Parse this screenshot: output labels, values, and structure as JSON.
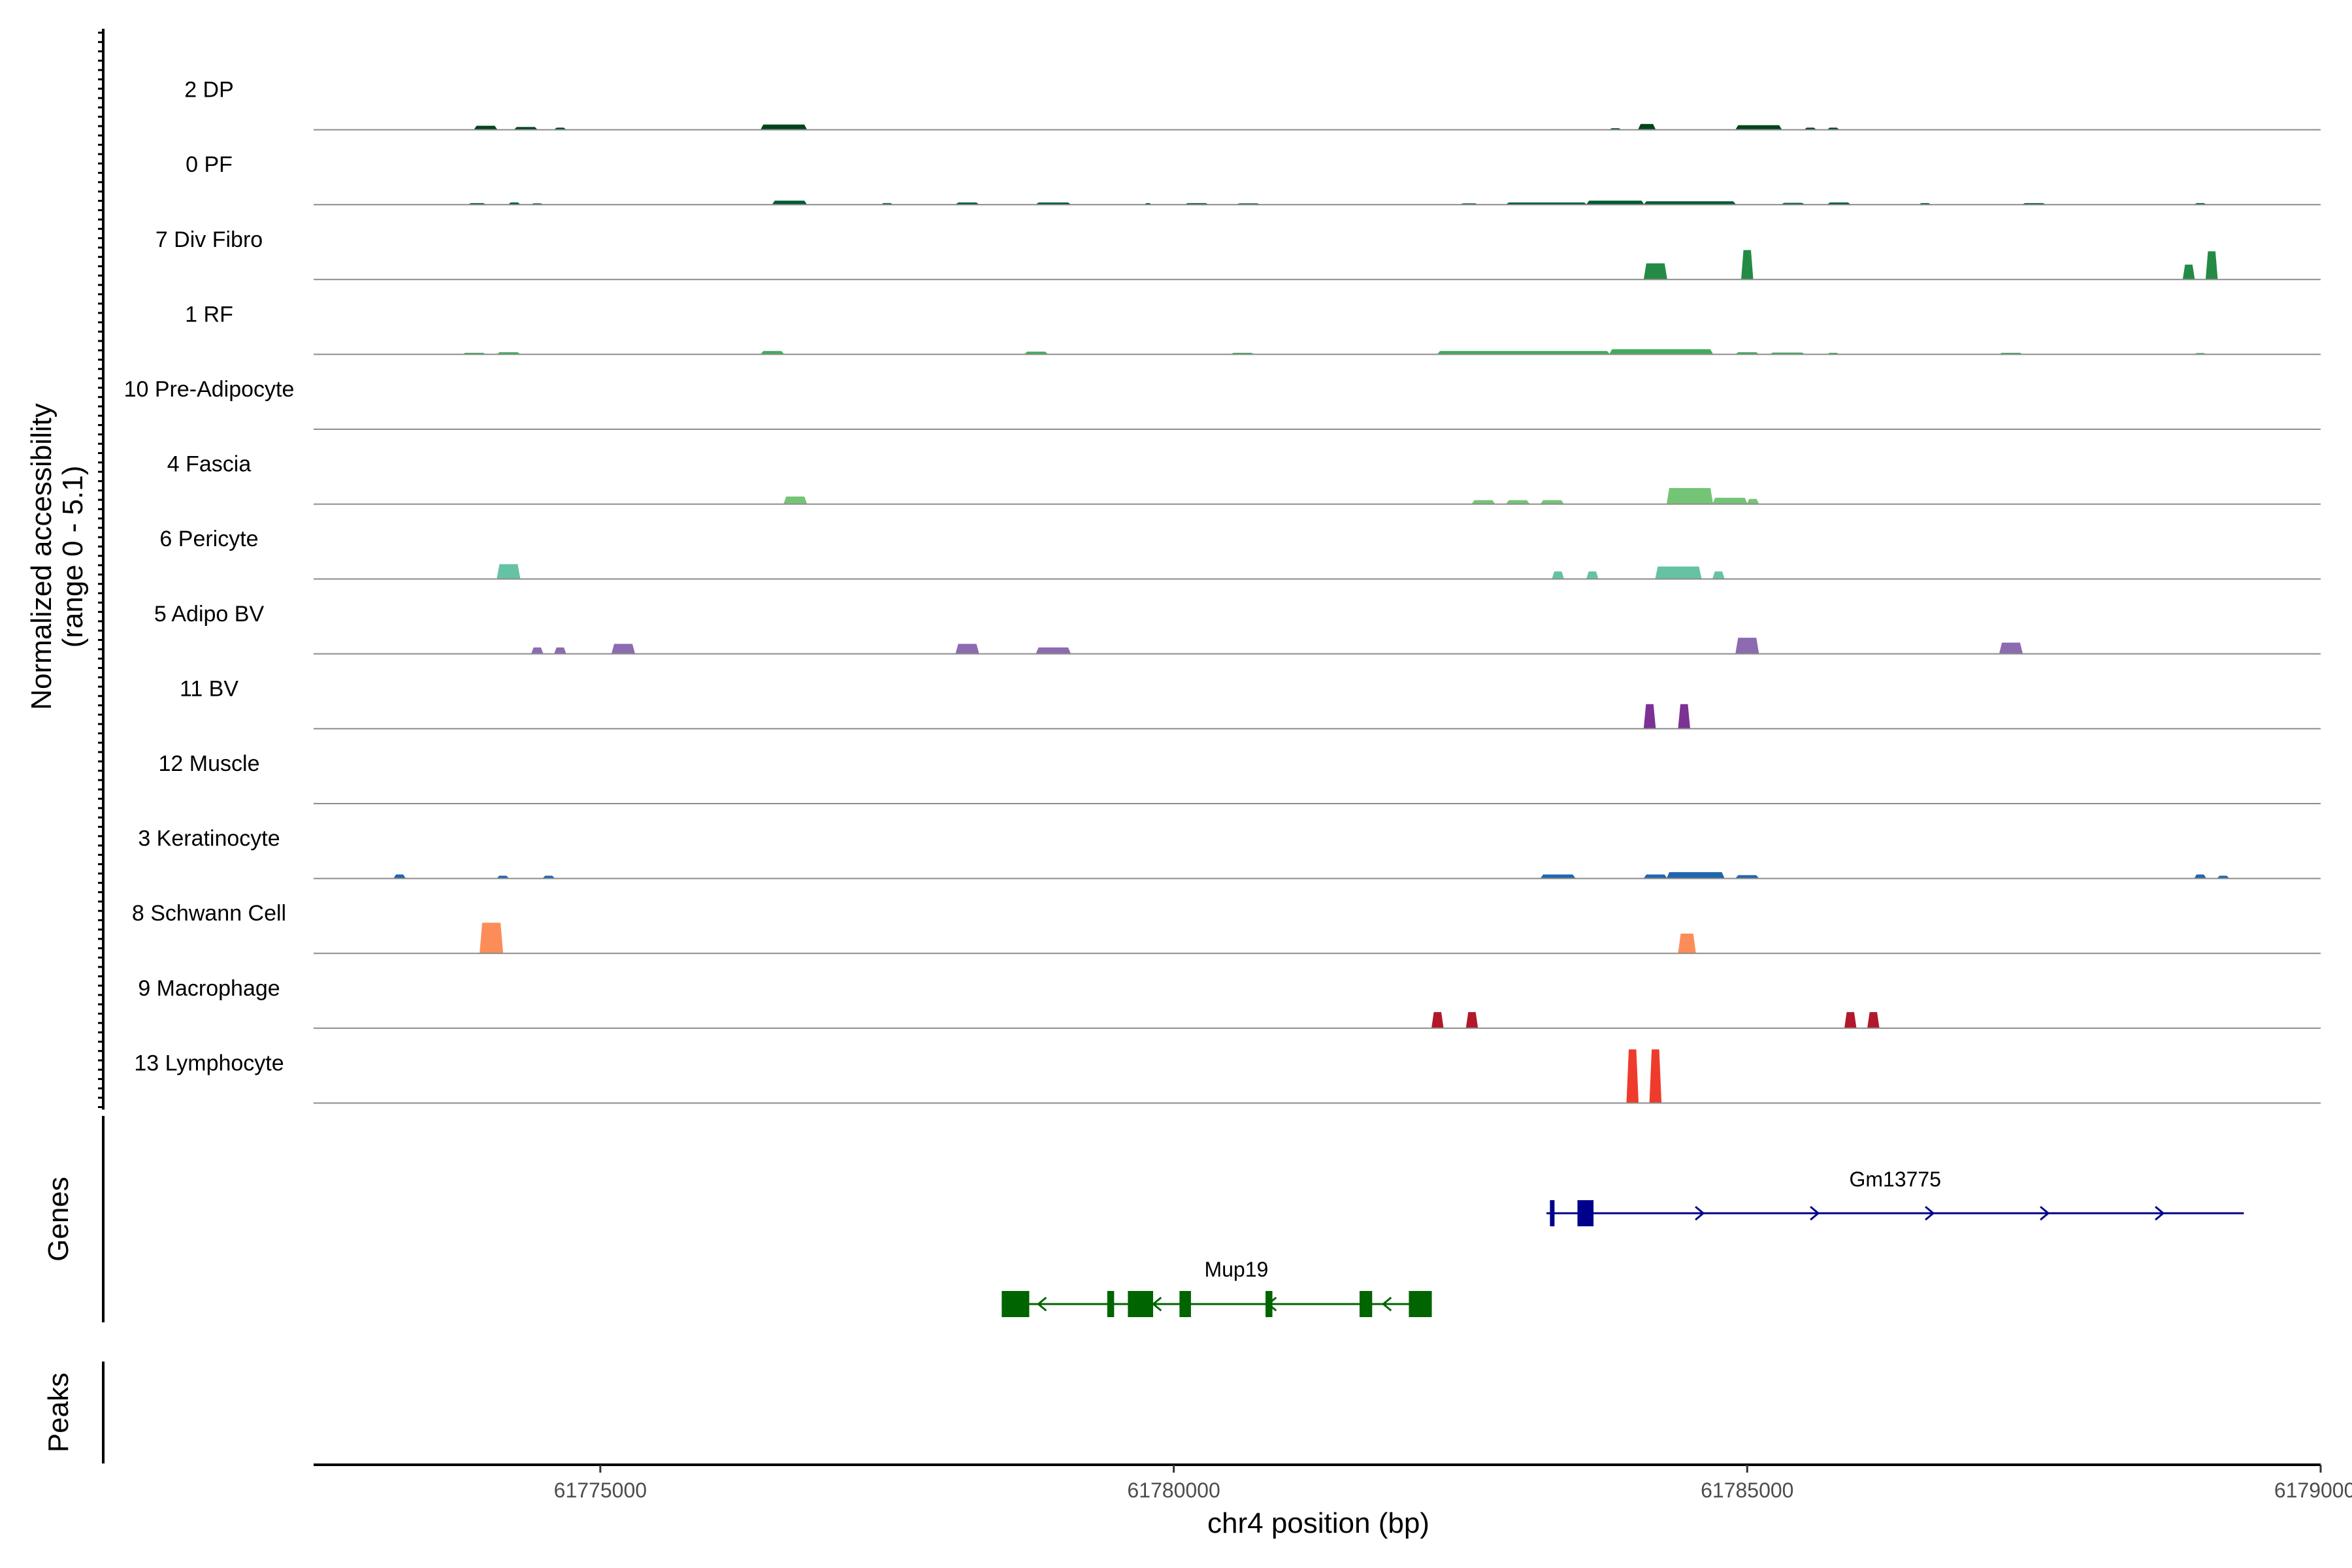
{
  "chart_data": {
    "type": "area",
    "region": "chr4",
    "xlabel": "chr4 position (bp)",
    "ylabel_line1": "Normalized accessibility",
    "ylabel_line2": "(range 0 - 5.1)",
    "genes_label": "Genes",
    "peaks_label": "Peaks",
    "xlim": [
      61772500,
      61790000
    ],
    "ylim": [
      0,
      5.1
    ],
    "x_ticks": [
      61775000,
      61780000,
      61785000,
      61790000
    ],
    "x_tick_labels": [
      "61775000",
      "61780000",
      "61785000",
      "61790000"
    ],
    "tracks": [
      {
        "name": "2 DP",
        "color": "#00441b",
        "values": [
          [
            61773900,
            61774100,
            0.3
          ],
          [
            61774250,
            61774450,
            0.2
          ],
          [
            61774600,
            61774700,
            0.15
          ],
          [
            61776400,
            61776800,
            0.4
          ],
          [
            61783800,
            61783900,
            0.1
          ],
          [
            61784050,
            61784200,
            0.45
          ],
          [
            61784900,
            61785300,
            0.35
          ],
          [
            61785500,
            61785600,
            0.15
          ],
          [
            61785700,
            61785800,
            0.15
          ]
        ]
      },
      {
        "name": "0 PF",
        "color": "#005a32",
        "values": [
          [
            61773850,
            61774000,
            0.1
          ],
          [
            61774200,
            61774300,
            0.15
          ],
          [
            61774400,
            61774500,
            0.08
          ],
          [
            61776500,
            61776800,
            0.3
          ],
          [
            61777450,
            61777550,
            0.1
          ],
          [
            61778100,
            61778300,
            0.15
          ],
          [
            61778800,
            61779100,
            0.15
          ],
          [
            61779750,
            61779800,
            0.1
          ],
          [
            61780100,
            61780300,
            0.1
          ],
          [
            61780550,
            61780750,
            0.08
          ],
          [
            61782500,
            61782650,
            0.08
          ],
          [
            61782900,
            61783600,
            0.15
          ],
          [
            61783600,
            61784100,
            0.3
          ],
          [
            61784100,
            61784900,
            0.25
          ],
          [
            61785300,
            61785500,
            0.12
          ],
          [
            61785700,
            61785900,
            0.15
          ],
          [
            61786500,
            61786600,
            0.1
          ],
          [
            61787400,
            61787600,
            0.1
          ],
          [
            61788900,
            61789000,
            0.1
          ]
        ]
      },
      {
        "name": "7 Div Fibro",
        "color": "#238b45",
        "values": [
          [
            61784100,
            61784300,
            1.3
          ],
          [
            61784950,
            61785050,
            2.4
          ],
          [
            61788800,
            61788900,
            1.2
          ],
          [
            61789000,
            61789100,
            2.3
          ]
        ]
      },
      {
        "name": "1 RF",
        "color": "#41ab5d",
        "values": [
          [
            61773800,
            61774000,
            0.1
          ],
          [
            61774100,
            61774300,
            0.15
          ],
          [
            61776400,
            61776600,
            0.25
          ],
          [
            61778700,
            61778900,
            0.2
          ],
          [
            61780500,
            61780700,
            0.1
          ],
          [
            61782300,
            61783800,
            0.25
          ],
          [
            61783800,
            61784700,
            0.4
          ],
          [
            61784900,
            61785100,
            0.15
          ],
          [
            61785200,
            61785500,
            0.12
          ],
          [
            61785700,
            61785800,
            0.1
          ],
          [
            61787200,
            61787400,
            0.1
          ],
          [
            61788900,
            61789000,
            0.08
          ]
        ]
      },
      {
        "name": "10 Pre-Adipocyte",
        "color": "#74c476",
        "values": []
      },
      {
        "name": "4 Fascia",
        "color": "#74c476",
        "values": [
          [
            61776600,
            61776800,
            0.6
          ],
          [
            61782600,
            61782800,
            0.3
          ],
          [
            61782900,
            61783100,
            0.3
          ],
          [
            61783200,
            61783400,
            0.3
          ],
          [
            61784300,
            61784700,
            1.3
          ],
          [
            61784700,
            61785000,
            0.5
          ],
          [
            61785000,
            61785100,
            0.4
          ]
        ]
      },
      {
        "name": "6 Pericyte",
        "color": "#66c2a4",
        "values": [
          [
            61774100,
            61774300,
            1.2
          ],
          [
            61783300,
            61783400,
            0.6
          ],
          [
            61783600,
            61783700,
            0.6
          ],
          [
            61784200,
            61784600,
            1.0
          ],
          [
            61784700,
            61784800,
            0.6
          ]
        ]
      },
      {
        "name": "5 Adipo BV",
        "color": "#8c6bb1",
        "values": [
          [
            61774400,
            61774500,
            0.5
          ],
          [
            61774600,
            61774700,
            0.5
          ],
          [
            61775100,
            61775300,
            0.8
          ],
          [
            61778100,
            61778300,
            0.8
          ],
          [
            61778800,
            61779100,
            0.5
          ],
          [
            61784900,
            61785100,
            1.3
          ],
          [
            61787200,
            61787400,
            0.9
          ]
        ]
      },
      {
        "name": "11 BV",
        "color": "#7b3294",
        "values": [
          [
            61784100,
            61784200,
            2.0
          ],
          [
            61784400,
            61784500,
            2.0
          ]
        ]
      },
      {
        "name": "12 Muscle",
        "color": "#4575b4",
        "values": []
      },
      {
        "name": "3 Keratinocyte",
        "color": "#2166ac",
        "values": [
          [
            61773200,
            61773300,
            0.3
          ],
          [
            61774100,
            61774200,
            0.2
          ],
          [
            61774500,
            61774600,
            0.2
          ],
          [
            61783200,
            61783500,
            0.3
          ],
          [
            61784100,
            61784300,
            0.3
          ],
          [
            61784300,
            61784800,
            0.5
          ],
          [
            61784900,
            61785100,
            0.25
          ],
          [
            61788900,
            61789000,
            0.3
          ],
          [
            61789100,
            61789200,
            0.2
          ]
        ]
      },
      {
        "name": "8 Schwann Cell",
        "color": "#fc8d59",
        "values": [
          [
            61773950,
            61774150,
            2.5
          ],
          [
            61784400,
            61784550,
            1.6
          ]
        ]
      },
      {
        "name": "9 Macrophage",
        "color": "#b2182b",
        "values": [
          [
            61782250,
            61782350,
            1.3
          ],
          [
            61782550,
            61782650,
            1.3
          ],
          [
            61785850,
            61785950,
            1.3
          ],
          [
            61786050,
            61786150,
            1.3
          ]
        ]
      },
      {
        "name": "13 Lymphocyte",
        "color": "#ef3b2c",
        "values": [
          [
            61783950,
            61784050,
            4.4
          ],
          [
            61784150,
            61784250,
            4.4
          ]
        ]
      }
    ],
    "genes": [
      {
        "name": "Gm13775",
        "strand": "+",
        "color": "#00008b",
        "start": 61783250,
        "end": 61789330,
        "exons": [
          [
            61783280,
            61783320
          ],
          [
            61783520,
            61783660
          ]
        ]
      },
      {
        "name": "Mup19",
        "strand": "-",
        "color": "#006400",
        "start": 61778500,
        "end": 61782250,
        "exons": [
          [
            61778500,
            61778740
          ],
          [
            61779420,
            61779480
          ],
          [
            61779600,
            61779820
          ],
          [
            61780050,
            61780150
          ],
          [
            61780800,
            61780860
          ],
          [
            61781620,
            61781730
          ],
          [
            61782050,
            61782250
          ]
        ]
      }
    ],
    "peaks": []
  }
}
